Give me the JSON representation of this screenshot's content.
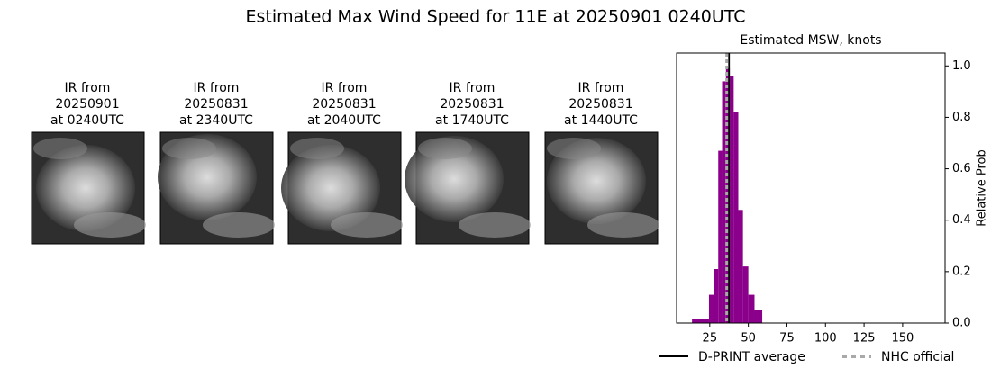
{
  "title": "Estimated Max Wind Speed for 11E at 20250901 0240UTC",
  "panels": [
    {
      "lines": [
        "IR from",
        "20250901",
        "at 0240UTC"
      ]
    },
    {
      "lines": [
        "IR from",
        "20250831",
        "at 2340UTC"
      ]
    },
    {
      "lines": [
        "IR from",
        "20250831",
        "at 2040UTC"
      ]
    },
    {
      "lines": [
        "IR from",
        "20250831",
        "at 1740UTC"
      ]
    },
    {
      "lines": [
        "IR from",
        "20250831",
        "at 1440UTC"
      ]
    }
  ],
  "chart_data": {
    "type": "histogram",
    "title": "Estimated MSW, knots",
    "y_label": "Relative Prob",
    "bins": [
      13.5,
      24.5,
      27.5,
      30.5,
      33,
      35.5,
      38,
      40.5,
      43.5,
      46.5,
      50,
      54,
      59
    ],
    "values": [
      0.017,
      0.11,
      0.21,
      0.67,
      0.94,
      0.99,
      0.96,
      0.82,
      0.44,
      0.22,
      0.11,
      0.05
    ],
    "color": "#8b008b",
    "xlim": [
      3.5,
      177.5
    ],
    "xticks": [
      25,
      50,
      75,
      100,
      125,
      150
    ],
    "ylim": [
      0,
      1.05
    ],
    "yticks": [
      {
        "value": 0,
        "label": "0.0"
      },
      0.2,
      0.4,
      0.6,
      0.8,
      {
        "value": 1,
        "label": "1.0"
      }
    ],
    "lines": [
      {
        "name": "D-PRINT average",
        "value": 37.5,
        "color": "#000000",
        "style": "solid"
      },
      {
        "name": "NHC official",
        "value": 36,
        "color": "#a9a9a9",
        "style": "dashed"
      }
    ]
  }
}
